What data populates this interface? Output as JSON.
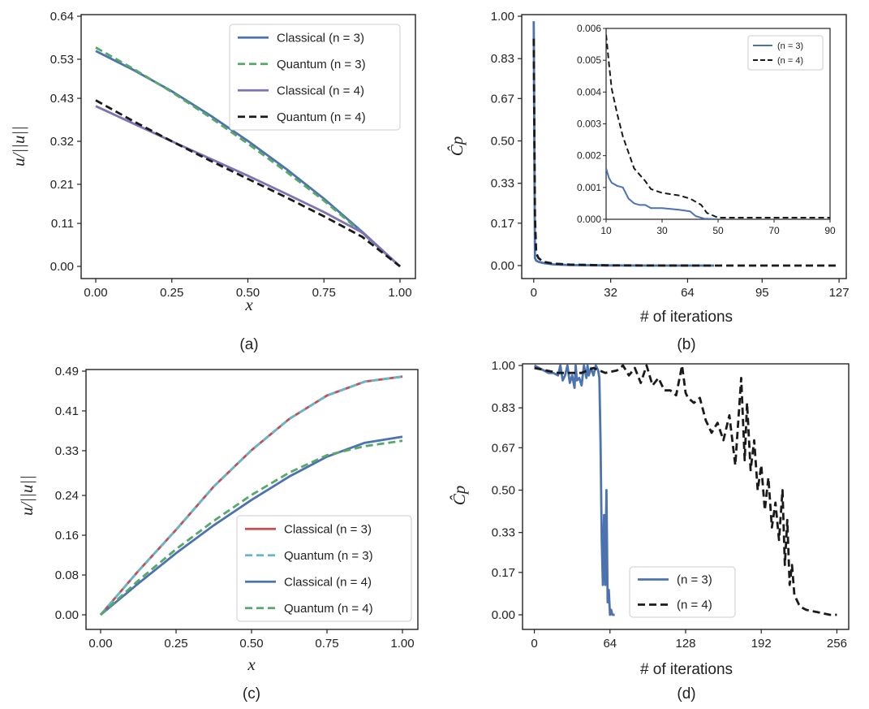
{
  "chart_data": [
    {
      "id": "a",
      "type": "line",
      "caption": "(a)",
      "xlabel": "x",
      "ylabel": "u/||u||",
      "xlim": [
        0,
        1
      ],
      "ylim": [
        0,
        0.64
      ],
      "xticks": [
        "0.00",
        "0.25",
        "0.50",
        "0.75",
        "1.00"
      ],
      "yticks": [
        "0.00",
        "0.11",
        "0.21",
        "0.32",
        "0.43",
        "0.53",
        "0.64"
      ],
      "legend_position": "top-right",
      "series": [
        {
          "name": "Classical",
          "n_label": "(n = 3)",
          "color": "#4c72b0",
          "dash": "solid",
          "x": [
            0,
            0.125,
            0.25,
            0.375,
            0.5,
            0.625,
            0.75,
            0.875,
            1.0
          ],
          "y": [
            0.551,
            0.502,
            0.448,
            0.387,
            0.321,
            0.25,
            0.173,
            0.089,
            0.0
          ]
        },
        {
          "name": "Quantum",
          "n_label": "(n = 3)",
          "color": "#55a868",
          "dash": "dashed",
          "x": [
            0,
            0.125,
            0.25,
            0.375,
            0.5,
            0.625,
            0.75,
            0.875,
            1.0
          ],
          "y": [
            0.56,
            0.505,
            0.446,
            0.382,
            0.314,
            0.243,
            0.168,
            0.086,
            0.0
          ]
        },
        {
          "name": "Classical",
          "n_label": "(n = 4)",
          "color": "#8172b3",
          "dash": "solid",
          "x": [
            0,
            0.125,
            0.25,
            0.375,
            0.5,
            0.625,
            0.75,
            0.875,
            1.0
          ],
          "y": [
            0.41,
            0.365,
            0.32,
            0.276,
            0.232,
            0.186,
            0.139,
            0.087,
            0.0
          ]
        },
        {
          "name": "Quantum",
          "n_label": "(n = 4)",
          "color": "#1a1a1a",
          "dash": "dashed",
          "x": [
            0,
            0.125,
            0.25,
            0.375,
            0.5,
            0.625,
            0.75,
            0.875,
            1.0
          ],
          "y": [
            0.425,
            0.371,
            0.32,
            0.271,
            0.224,
            0.177,
            0.128,
            0.076,
            0.0
          ]
        }
      ]
    },
    {
      "id": "b",
      "type": "line",
      "caption": "(b)",
      "xlabel": "# of iterations",
      "ylabel": "Ĉp",
      "xlim": [
        -5,
        130
      ],
      "ylim": [
        0,
        1.0
      ],
      "xticks": [
        "0",
        "32",
        "64",
        "95",
        "127"
      ],
      "xtick_values": [
        0,
        32,
        64,
        95,
        127
      ],
      "yticks": [
        "0.00",
        "0.17",
        "0.33",
        "0.50",
        "0.67",
        "0.83",
        "1.00"
      ],
      "series": [
        {
          "name": "(n = 3)",
          "color": "#4c72b0",
          "dash": "solid",
          "x": [
            0,
            0.5,
            1,
            2,
            4,
            8,
            15,
            30,
            50,
            75
          ],
          "y": [
            0.98,
            0.03,
            0.02,
            0.015,
            0.01,
            0.005,
            0.002,
            0.0005,
            0,
            0
          ]
        },
        {
          "name": "(n = 4)",
          "color": "#1a1a1a",
          "dash": "dashed",
          "x": [
            0,
            0.5,
            1,
            2,
            4,
            8,
            15,
            30,
            50,
            80,
            127
          ],
          "y": [
            0.91,
            0.2,
            0.05,
            0.03,
            0.015,
            0.008,
            0.004,
            0.001,
            0.0003,
            0.0001,
            0.0001
          ]
        }
      ],
      "inset": {
        "xlim": [
          10,
          90
        ],
        "ylim": [
          0,
          0.006
        ],
        "xticks": [
          "10",
          "30",
          "50",
          "70",
          "90"
        ],
        "xtick_values": [
          10,
          30,
          50,
          70,
          90
        ],
        "yticks": [
          "0.000",
          "0.001",
          "0.002",
          "0.003",
          "0.004",
          "0.005",
          "0.006"
        ],
        "ytick_values": [
          0,
          0.001,
          0.002,
          0.003,
          0.004,
          0.005,
          0.006
        ],
        "legend_position": "top-right",
        "series": [
          {
            "name": "(n = 3)",
            "color": "#4c72b0",
            "dash": "solid",
            "x": [
              10,
              11,
              12,
              14,
              16,
              18,
              20,
              22,
              24,
              26,
              30,
              36,
              40,
              42,
              45,
              50
            ],
            "y": [
              0.0016,
              0.0013,
              0.00115,
              0.00105,
              0.001,
              0.00065,
              0.0005,
              0.00045,
              0.00045,
              0.00035,
              0.00035,
              0.0003,
              0.00025,
              0.0001,
              2e-05,
              0
            ]
          },
          {
            "name": "(n = 4)",
            "color": "#1a1a1a",
            "dash": "dashed",
            "x": [
              10,
              11,
              12,
              14,
              16,
              18,
              20,
              22,
              24,
              26,
              30,
              36,
              40,
              44,
              46,
              50,
              90
            ],
            "y": [
              0.0058,
              0.0049,
              0.0041,
              0.0033,
              0.0026,
              0.0021,
              0.0016,
              0.0014,
              0.0012,
              0.00095,
              0.00083,
              0.00075,
              0.00065,
              0.00045,
              0.0002,
              5e-05,
              5e-05
            ]
          }
        ]
      }
    },
    {
      "id": "c",
      "type": "line",
      "caption": "(c)",
      "xlabel": "x",
      "ylabel": "u/||u||",
      "xlim": [
        0,
        1
      ],
      "ylim": [
        0,
        0.49
      ],
      "xticks": [
        "0.00",
        "0.25",
        "0.50",
        "0.75",
        "1.00"
      ],
      "yticks": [
        "0.00",
        "0.08",
        "0.16",
        "0.24",
        "0.33",
        "0.41",
        "0.49"
      ],
      "legend_position": "bottom-right",
      "series": [
        {
          "name": "Classical",
          "n_label": "(n = 3)",
          "color": "#c44e52",
          "dash": "solid",
          "x": [
            0,
            0.125,
            0.25,
            0.375,
            0.5,
            0.625,
            0.75,
            0.875,
            1.0
          ],
          "y": [
            0,
            0.088,
            0.171,
            0.258,
            0.331,
            0.394,
            0.441,
            0.469,
            0.479
          ]
        },
        {
          "name": "Quantum",
          "n_label": "(n = 3)",
          "color": "#64b5cd",
          "dash": "dashed",
          "x": [
            0,
            0.125,
            0.25,
            0.375,
            0.5,
            0.625,
            0.75,
            0.875,
            1.0
          ],
          "y": [
            0,
            0.088,
            0.171,
            0.258,
            0.331,
            0.394,
            0.441,
            0.469,
            0.479
          ]
        },
        {
          "name": "Classical",
          "n_label": "(n = 4)",
          "color": "#4c72b0",
          "dash": "solid",
          "x": [
            0,
            0.125,
            0.25,
            0.375,
            0.5,
            0.625,
            0.75,
            0.875,
            1.0
          ],
          "y": [
            0,
            0.063,
            0.124,
            0.18,
            0.231,
            0.278,
            0.318,
            0.346,
            0.358
          ]
        },
        {
          "name": "Quantum",
          "n_label": "(n = 4)",
          "color": "#55a868",
          "dash": "dashed",
          "x": [
            0,
            0.125,
            0.25,
            0.375,
            0.5,
            0.625,
            0.75,
            0.875,
            1.0
          ],
          "y": [
            0,
            0.069,
            0.132,
            0.189,
            0.241,
            0.286,
            0.321,
            0.339,
            0.35
          ]
        }
      ]
    },
    {
      "id": "d",
      "type": "line",
      "caption": "(d)",
      "xlabel": "# of iterations",
      "ylabel": "Ĉp",
      "xlim": [
        -10,
        266
      ],
      "ylim": [
        -0.03,
        1.0
      ],
      "xticks": [
        "0",
        "64",
        "128",
        "192",
        "256"
      ],
      "xtick_values": [
        0,
        64,
        128,
        192,
        256
      ],
      "yticks": [
        "0.00",
        "0.17",
        "0.33",
        "0.50",
        "0.67",
        "0.83",
        "1.00"
      ],
      "legend_position": "bottom-center",
      "series": [
        {
          "name": "(n = 3)",
          "color": "#4c72b0",
          "dash": "solid",
          "x": [
            0,
            4,
            8,
            12,
            16,
            20,
            22,
            24,
            26,
            28,
            30,
            32,
            34,
            35,
            36,
            38,
            40,
            42,
            44,
            45,
            46,
            48,
            50,
            52,
            54,
            55,
            56,
            57,
            58,
            59,
            60,
            61,
            62,
            63,
            64,
            65,
            66,
            68
          ],
          "y": [
            1.0,
            0.99,
            0.98,
            0.97,
            0.97,
            0.96,
            1.0,
            0.94,
            0.96,
            1.0,
            0.93,
            0.96,
            0.91,
            1.0,
            0.94,
            0.95,
            0.92,
            1.0,
            0.95,
            1.0,
            0.96,
            0.99,
            0.96,
            1.0,
            0.98,
            0.95,
            0.7,
            0.3,
            0.12,
            0.4,
            0.12,
            0.5,
            0.05,
            0.1,
            0.0,
            0.02,
            0.0,
            0.0
          ]
        },
        {
          "name": "(n = 4)",
          "color": "#1a1a1a",
          "dash": "dashed",
          "x": [
            0,
            10,
            20,
            40,
            50,
            60,
            70,
            75,
            80,
            85,
            90,
            95,
            100,
            105,
            110,
            115,
            120,
            125,
            128,
            130,
            135,
            140,
            145,
            150,
            155,
            160,
            165,
            170,
            175,
            178,
            180,
            183,
            186,
            189,
            192,
            195,
            198,
            201,
            204,
            207,
            210,
            212,
            214,
            216,
            218,
            220,
            222,
            224,
            226,
            230,
            240,
            250,
            256
          ],
          "y": [
            0.99,
            0.98,
            0.97,
            0.97,
            0.99,
            0.97,
            0.98,
            1.0,
            0.96,
            0.99,
            0.93,
            1.0,
            0.92,
            0.95,
            0.9,
            0.9,
            0.88,
            1.0,
            0.89,
            0.87,
            0.85,
            0.87,
            0.78,
            0.73,
            0.77,
            0.7,
            0.8,
            0.6,
            0.95,
            0.62,
            0.85,
            0.58,
            0.7,
            0.5,
            0.6,
            0.42,
            0.55,
            0.35,
            0.45,
            0.3,
            0.5,
            0.2,
            0.38,
            0.12,
            0.2,
            0.08,
            0.06,
            0.04,
            0.03,
            0.02,
            0.01,
            0.0,
            0.0
          ]
        }
      ]
    }
  ]
}
